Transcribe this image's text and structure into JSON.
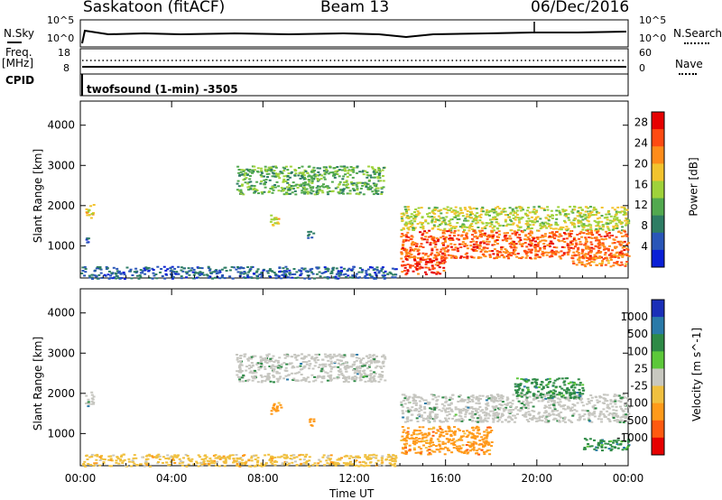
{
  "header": {
    "station": "Saskatoon (fitACF)",
    "beam": "Beam 13",
    "date": "06/Dec/2016"
  },
  "top_panel": {
    "nsky_label": "N.Sky",
    "nsearch_label": "N.Search",
    "left_ticks": [
      "10^5",
      "10^0"
    ],
    "right_ticks": [
      "10^5",
      "10^0"
    ]
  },
  "freq_panel": {
    "freq_label": "Freq.",
    "freq_unit": "[MHz]",
    "nave_label": "Nave",
    "left_ticks": [
      "18",
      "8"
    ],
    "right_ticks": [
      "60",
      "0"
    ]
  },
  "cpid": {
    "label": "CPID",
    "value": "twofsound (1-min) -3505"
  },
  "colors": {
    "power_scale": [
      "#0a1fd6",
      "#2a56b8",
      "#2e7d64",
      "#52a94f",
      "#9fd23a",
      "#f2c32e",
      "#ff8c1a",
      "#ff4a12",
      "#e60000"
    ],
    "velocity_scale": [
      "#1a2fb8",
      "#2a7aa8",
      "#2e8a46",
      "#5cc83a",
      "#c8c8c0",
      "#f0c040",
      "#ff9a1a",
      "#ff5a10",
      "#e60000"
    ],
    "ground_scatter": "#c6c6c0"
  },
  "chart_data": [
    {
      "type": "heatmap",
      "panel": "power",
      "ylabel": "Slant Range [km]",
      "y_ticks": [
        "1000",
        "2000",
        "3000",
        "4000"
      ],
      "ylim": [
        200,
        4600
      ],
      "x_ticks": [
        "00:00",
        "04:00",
        "08:00",
        "12:00",
        "16:00",
        "20:00",
        "00:00"
      ],
      "colorbar": {
        "label": "Power [dB]",
        "ticks": [
          "4",
          "8",
          "12",
          "16",
          "20",
          "24",
          "28"
        ],
        "range": [
          0,
          30
        ]
      },
      "echo_regions": [
        {
          "t_start": 0.0,
          "t_end": 13.8,
          "range_start": 200,
          "range_end": 500,
          "power_db": 6
        },
        {
          "t_start": 0.2,
          "t_end": 0.6,
          "range_start": 1700,
          "range_end": 2050,
          "power_db": 18
        },
        {
          "t_start": 0.2,
          "t_end": 0.4,
          "range_start": 1100,
          "range_end": 1350,
          "power_db": 6
        },
        {
          "t_start": 6.8,
          "t_end": 13.3,
          "range_start": 2300,
          "range_end": 3000,
          "power_db": 12
        },
        {
          "t_start": 8.3,
          "t_end": 8.8,
          "range_start": 1500,
          "range_end": 1800,
          "power_db": 18
        },
        {
          "t_start": 9.9,
          "t_end": 10.2,
          "range_start": 1200,
          "range_end": 1400,
          "power_db": 8
        },
        {
          "t_start": 14.0,
          "t_end": 24.0,
          "range_start": 1400,
          "range_end": 2000,
          "power_db": 16
        },
        {
          "t_start": 14.0,
          "t_end": 24.0,
          "range_start": 700,
          "range_end": 1400,
          "power_db": 24
        },
        {
          "t_start": 14.0,
          "t_end": 16.0,
          "range_start": 300,
          "range_end": 700,
          "power_db": 26
        },
        {
          "t_start": 21.5,
          "t_end": 24.0,
          "range_start": 500,
          "range_end": 800,
          "power_db": 22
        }
      ]
    },
    {
      "type": "heatmap",
      "panel": "velocity",
      "ylabel": "Slant Range [km]",
      "xlabel": "Time UT",
      "y_ticks": [
        "1000",
        "2000",
        "3000",
        "4000"
      ],
      "ylim": [
        200,
        4600
      ],
      "x_ticks": [
        "00:00",
        "04:00",
        "08:00",
        "12:00",
        "16:00",
        "20:00",
        "00:00"
      ],
      "colorbar": {
        "label": "Velocity [m s^-1]",
        "ticks": [
          "1000",
          "500",
          "100",
          "25",
          "-25",
          "-100",
          "-500",
          "-1000"
        ]
      },
      "echo_regions": [
        {
          "t_start": 0.0,
          "t_end": 13.8,
          "range_start": 200,
          "range_end": 500,
          "velocity": -100
        },
        {
          "t_start": 0.2,
          "t_end": 0.6,
          "range_start": 1700,
          "range_end": 2050,
          "velocity": 0
        },
        {
          "t_start": 6.8,
          "t_end": 13.3,
          "range_start": 2300,
          "range_end": 3000,
          "velocity": 0
        },
        {
          "t_start": 8.3,
          "t_end": 8.8,
          "range_start": 1500,
          "range_end": 1800,
          "velocity": -500
        },
        {
          "t_start": 9.9,
          "t_end": 10.2,
          "range_start": 1200,
          "range_end": 1400,
          "velocity": -500
        },
        {
          "t_start": 14.0,
          "t_end": 24.0,
          "range_start": 1300,
          "range_end": 2000,
          "velocity": 0
        },
        {
          "t_start": 14.0,
          "t_end": 18.0,
          "range_start": 500,
          "range_end": 1200,
          "velocity": -500
        },
        {
          "t_start": 19.0,
          "t_end": 22.0,
          "range_start": 1900,
          "range_end": 2400,
          "velocity": 100
        },
        {
          "t_start": 22.0,
          "t_end": 24.0,
          "range_start": 600,
          "range_end": 900,
          "velocity": 100
        }
      ]
    }
  ]
}
